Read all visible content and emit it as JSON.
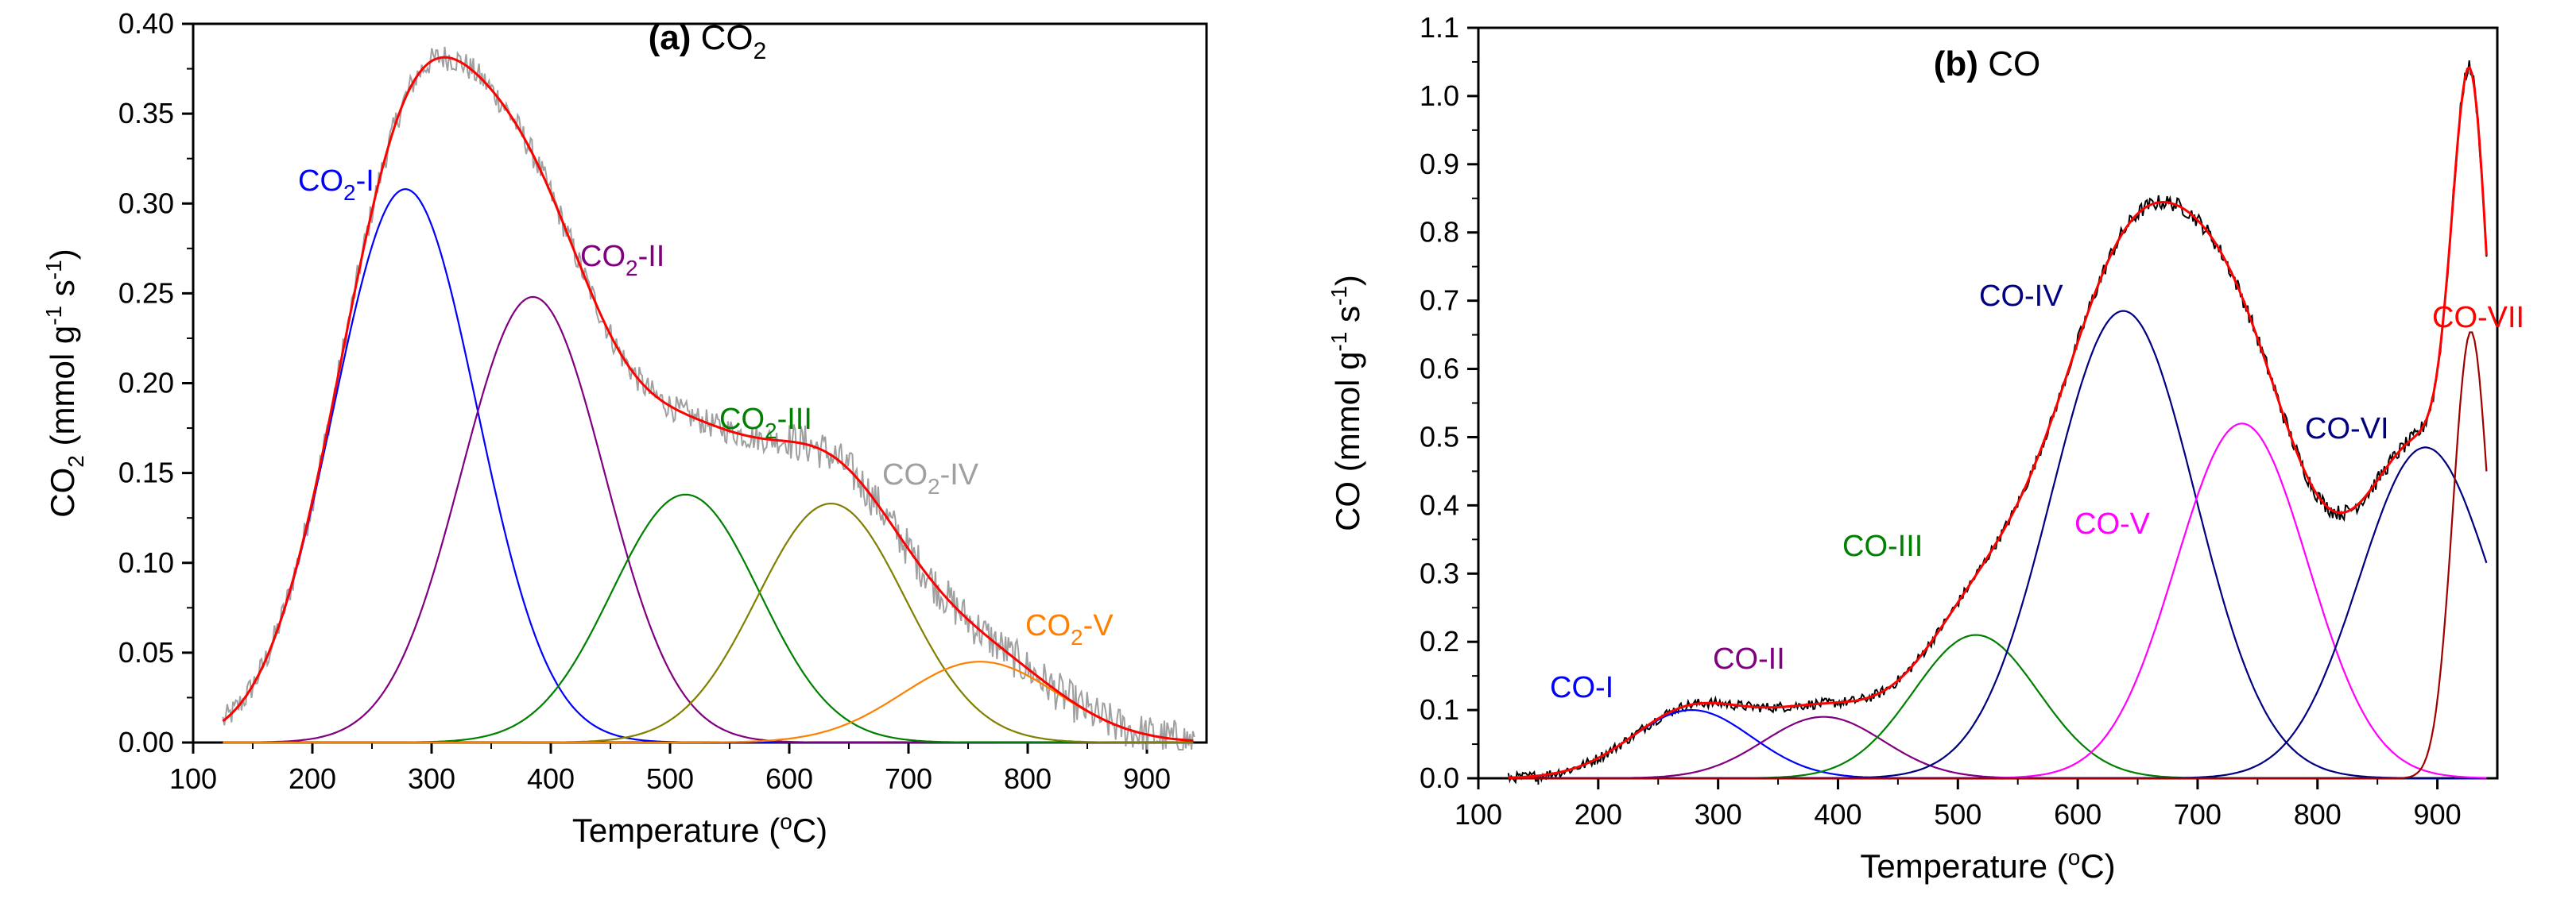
{
  "chart_data": [
    {
      "type": "line",
      "title_bold": "(a)",
      "title_rest": "CO",
      "title_sub": "2",
      "xlabel_main": "Temperature (",
      "xlabel_sup": "o",
      "xlabel_end": "C)",
      "ylabel_parts": [
        "CO",
        "2",
        " (mmol g",
        "-1",
        " s",
        "-1",
        ")"
      ],
      "xlim": [
        100,
        950
      ],
      "ylim": [
        0,
        0.4
      ],
      "xticks": [
        "100",
        "200",
        "300",
        "400",
        "500",
        "600",
        "700",
        "800",
        "900"
      ],
      "yticks": [
        "0.00",
        "0.05",
        "0.10",
        "0.15",
        "0.20",
        "0.25",
        "0.30",
        "0.35",
        "0.40"
      ],
      "fit_color": "#ff0000",
      "raw_color": "#a0a0a0",
      "peaks": [
        {
          "name": "CO2-I",
          "label_main": "CO",
          "label_sub": "2",
          "label_suffix": "-I",
          "center": 278,
          "amplitude": 0.308,
          "sigma": 60,
          "color": "#0000ff"
        },
        {
          "name": "CO2-II",
          "label_main": "CO",
          "label_sub": "2",
          "label_suffix": "-II",
          "center": 385,
          "amplitude": 0.248,
          "sigma": 60,
          "color": "#800080"
        },
        {
          "name": "CO2-III",
          "label_main": "CO",
          "label_sub": "2",
          "label_suffix": "-III",
          "center": 513,
          "amplitude": 0.138,
          "sigma": 62,
          "color": "#008000"
        },
        {
          "name": "CO2-IV",
          "label_main": "CO",
          "label_sub": "2",
          "label_suffix": "-IV",
          "center": 635,
          "amplitude": 0.133,
          "sigma": 62,
          "color": "#808000"
        },
        {
          "name": "CO2-V",
          "label_main": "CO",
          "label_sub": "2",
          "label_suffix": "-V",
          "center": 760,
          "amplitude": 0.045,
          "sigma": 65,
          "color": "#ff8000"
        }
      ],
      "label_colors": [
        "#0000ff",
        "#800080",
        "#008000",
        "#a0a0a0",
        "#ff8000"
      ],
      "x_range_data": [
        125,
        940
      ]
    },
    {
      "type": "line",
      "title_bold": "(b)",
      "title_rest": "CO",
      "title_sub": "",
      "xlabel_main": "Temperature (",
      "xlabel_sup": "o",
      "xlabel_end": "C)",
      "ylabel_parts": [
        "CO",
        "",
        " (mmol g",
        "-1",
        " s",
        "-1",
        ")"
      ],
      "xlim": [
        100,
        950
      ],
      "ylim": [
        0,
        1.1
      ],
      "xticks": [
        "100",
        "200",
        "300",
        "400",
        "500",
        "600",
        "700",
        "800",
        "900"
      ],
      "yticks": [
        "0.0",
        "0.1",
        "0.2",
        "0.3",
        "0.4",
        "0.5",
        "0.6",
        "0.7",
        "0.8",
        "0.9",
        "1.0",
        "1.1"
      ],
      "fit_color": "#ff0000",
      "raw_color": "#000000",
      "peaks": [
        {
          "name": "CO-I",
          "label_main": "CO-I",
          "label_sub": "",
          "label_suffix": "",
          "center": 278,
          "amplitude": 0.1,
          "sigma": 50,
          "color": "#0000ff"
        },
        {
          "name": "CO-II",
          "label_main": "CO-II",
          "label_sub": "",
          "label_suffix": "",
          "center": 388,
          "amplitude": 0.09,
          "sigma": 50,
          "color": "#800080"
        },
        {
          "name": "CO-III",
          "label_main": "CO-III",
          "label_sub": "",
          "label_suffix": "",
          "center": 515,
          "amplitude": 0.21,
          "sigma": 52,
          "color": "#008000"
        },
        {
          "name": "CO-IV",
          "label_main": "CO-IV",
          "label_sub": "",
          "label_suffix": "",
          "center": 638,
          "amplitude": 0.685,
          "sigma": 60,
          "color": "#000080"
        },
        {
          "name": "CO-V",
          "label_main": "CO-V",
          "label_sub": "",
          "label_suffix": "",
          "center": 737,
          "amplitude": 0.52,
          "sigma": 55,
          "color": "#ff00ff"
        },
        {
          "name": "CO-VI",
          "label_main": "CO-VI",
          "label_sub": "",
          "label_suffix": "",
          "center": 890,
          "amplitude": 0.485,
          "sigma": 55,
          "color": "#000080"
        },
        {
          "name": "CO-VII",
          "label_main": "CO-VII",
          "label_sub": "",
          "label_suffix": "",
          "center": 928,
          "amplitude": 0.655,
          "sigma": 15,
          "color": "#a00000"
        }
      ],
      "label_colors": [
        "#0000ff",
        "#800080",
        "#008000",
        "#000080",
        "#ff00ff",
        "#000080",
        "#ff0000"
      ],
      "x_range_data": [
        125,
        942
      ]
    }
  ]
}
